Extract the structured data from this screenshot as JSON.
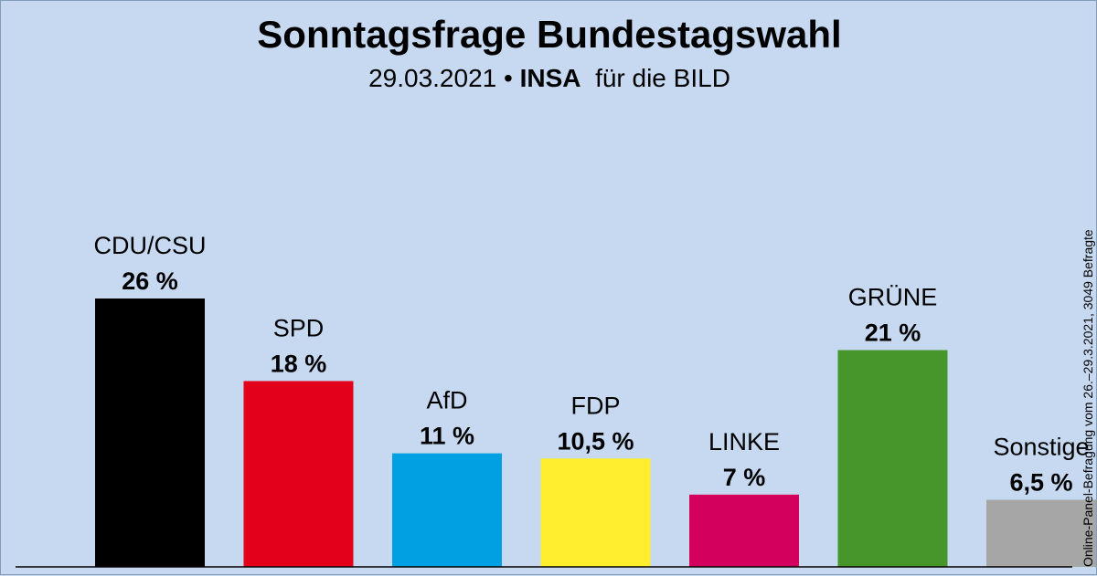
{
  "header": {
    "title": "Sonntagsfrage Bundestagswahl",
    "subtitle_date": "29.03.2021",
    "subtitle_bullet": "•",
    "subtitle_institute": "INSA",
    "subtitle_client": "für die BILD"
  },
  "source_note": "Online-Panel-Befragung vom 26.–29.3.2021, 3049 Befragte",
  "chart_data": {
    "type": "bar",
    "title": "Sonntagsfrage Bundestagswahl",
    "xlabel": "",
    "ylabel": "",
    "ylim": [
      0,
      26
    ],
    "grid": false,
    "categories": [
      "CDU/CSU",
      "SPD",
      "AfD",
      "FDP",
      "LINKE",
      "GRÜNE",
      "Sonstige"
    ],
    "values": [
      26,
      18,
      11,
      10.5,
      7,
      21,
      6.5
    ],
    "value_labels": [
      "26 %",
      "18 %",
      "11 %",
      "10,5 %",
      "7 %",
      "21 %",
      "6,5 %"
    ],
    "colors": [
      "#000000",
      "#e2001a",
      "#00a0e2",
      "#ffed2f",
      "#d4005e",
      "#46962b",
      "#a6a6a6"
    ]
  }
}
